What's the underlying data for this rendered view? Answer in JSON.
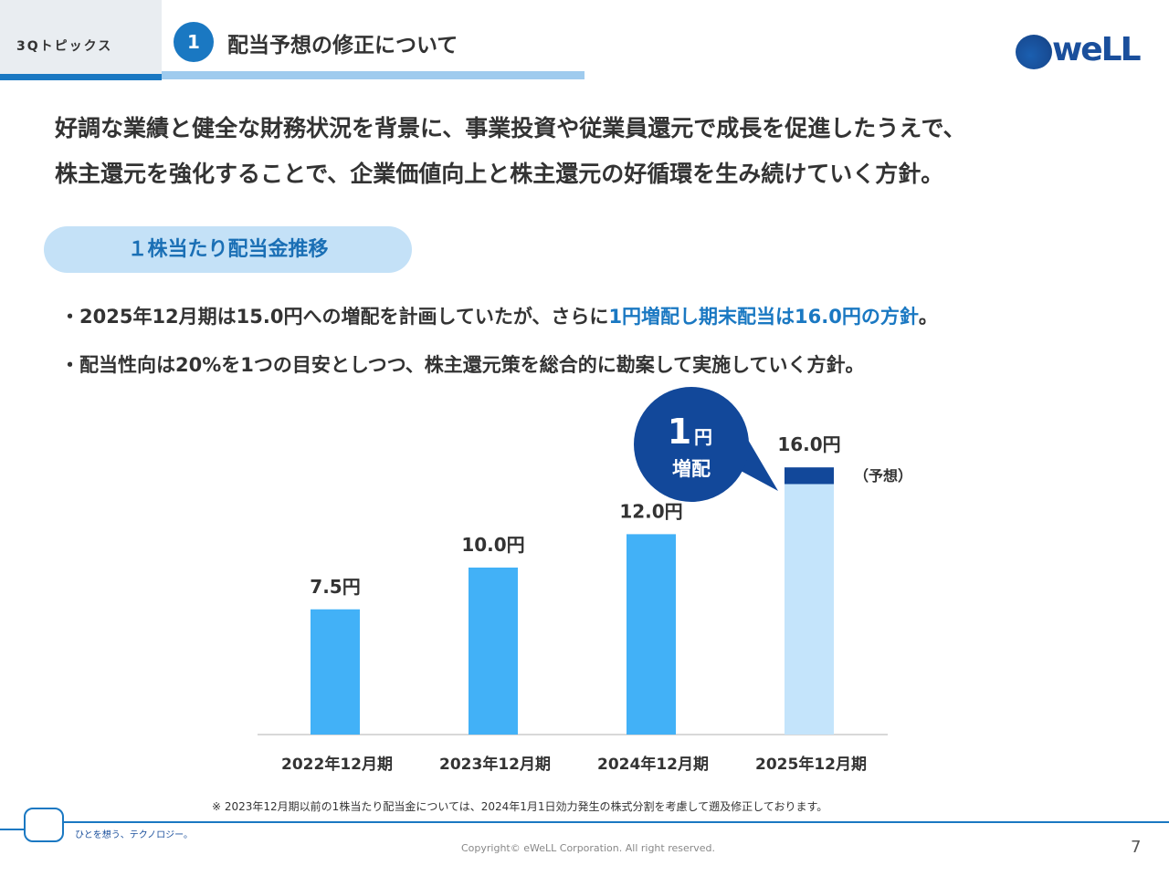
{
  "header": {
    "topic_label": "3Qトピックス",
    "section_number": "1",
    "title": "配当予想の修正について",
    "logo_text": "weLL"
  },
  "lead": {
    "line1": "好調な業績と健全な財務状況を背景に、事業投資や従業員還元で成長を促進したうえで、",
    "line2": "株主還元を強化することで、企業価値向上と株主還元の好循環を生み続けていく方針。"
  },
  "section_heading": "１株当たり配当金推移",
  "bullets": {
    "b1_pre": "・2025年12月期は15.0円への増配を計画していたが、さらに",
    "b1_hl": "1円増配し期末配当は16.0円の方針",
    "b1_post": "。",
    "b2": "・配当性向は20%を1つの目安としつつ、株主還元策を総合的に勘案して実施していく方針。"
  },
  "chart_data": {
    "type": "bar",
    "title": "１株当たり配当金推移",
    "categories": [
      "2022年12月期",
      "2023年12月期",
      "2024年12月期",
      "2025年12月期"
    ],
    "values": [
      7.5,
      10.0,
      12.0,
      16.0
    ],
    "value_labels": [
      "7.5円",
      "10.0円",
      "12.0円",
      "16.0円"
    ],
    "stacked_last": {
      "base": 15.0,
      "increase": 1.0
    },
    "forecast_note": "（予想）",
    "callout": {
      "number": "1",
      "unit": "円",
      "text": "増配"
    },
    "ylim": [
      0,
      16
    ],
    "colors": {
      "bar": "#42b1f7",
      "forecast_base": "#c4e4fb",
      "forecast_increase": "#12489a",
      "callout": "#12489a"
    }
  },
  "footnote": "※ 2023年12月期以前の1株当たり配当金については、2024年1月1日効力発生の株式分割を考慮して遡及修正しております。",
  "footer": {
    "tagline": "ひとを想う、テクノロジー。",
    "copyright": "Copyright© eWeLL Corporation. All right reserved.",
    "page_number": "7"
  }
}
